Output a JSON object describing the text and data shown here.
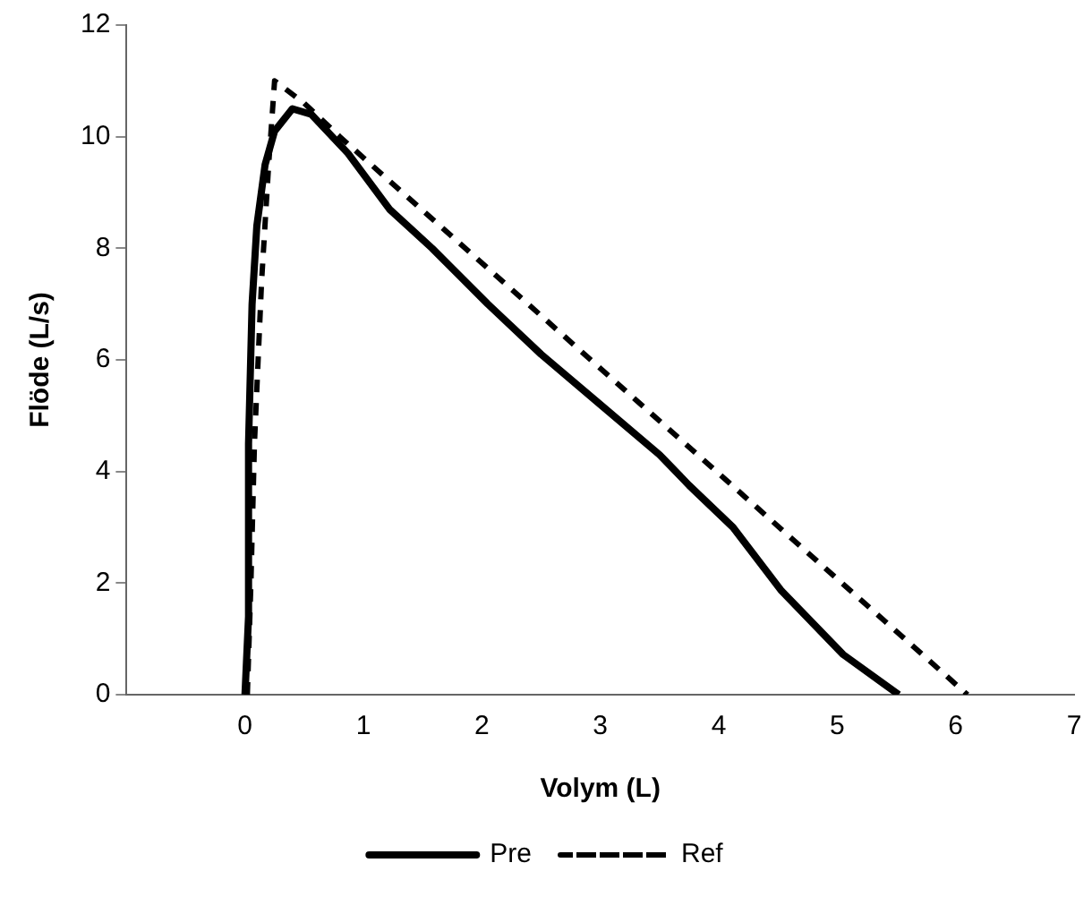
{
  "chart_data": {
    "type": "line",
    "xlabel": "Volym (L)",
    "ylabel": "Flöde (L/s)",
    "xlim": [
      -1,
      7
    ],
    "xticks": [
      {
        "value": -1,
        "label": null
      },
      0,
      1,
      2,
      3,
      4,
      5,
      6,
      7
    ],
    "ylim": [
      0,
      12
    ],
    "yticks": [
      0,
      2,
      4,
      6,
      8,
      10,
      12
    ],
    "grid": false,
    "legend": "bottom",
    "marker": "none",
    "series": [
      {
        "name": "Pre",
        "color": "#000000",
        "line_style": "solid",
        "x": [
          0,
          0.03,
          0.03,
          0.06,
          0.1,
          0.17,
          0.25,
          0.4,
          0.56,
          0.87,
          1.22,
          1.58,
          2.05,
          2.5,
          3.0,
          3.5,
          3.75,
          4.12,
          4.53,
          5.05,
          5.52
        ],
        "values": [
          0,
          1.4,
          4.5,
          7.0,
          8.4,
          9.5,
          10.1,
          10.5,
          10.4,
          9.7,
          8.7,
          8.0,
          7.0,
          6.1,
          5.2,
          4.3,
          3.75,
          3.0,
          1.86,
          0.72,
          0
        ]
      },
      {
        "name": "Ref",
        "color": "#000000",
        "line_style": "dashed",
        "x": [
          0.02,
          0.05,
          0.08,
          0.14,
          0.2,
          0.25,
          0.5,
          0.8,
          6.1
        ],
        "values": [
          0,
          2,
          4.5,
          7.4,
          9.5,
          11,
          10.6,
          10,
          0
        ]
      }
    ]
  }
}
